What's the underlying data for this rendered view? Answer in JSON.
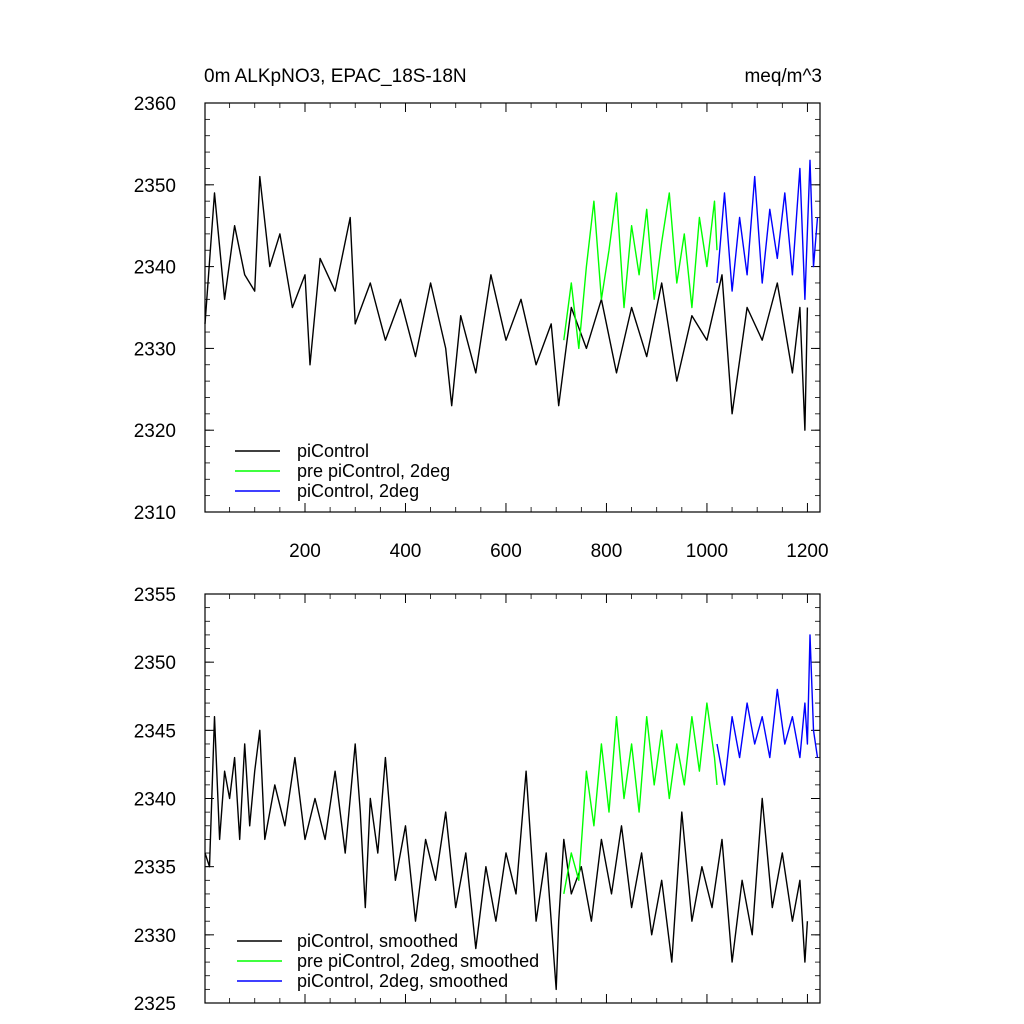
{
  "chart_data": [
    {
      "type": "line",
      "title": "0m ALKpNO3, EPAC_18S-18N",
      "units": "meq/m^3",
      "xlim": [
        1,
        1225
      ],
      "ylim": [
        2310,
        2360
      ],
      "x_ticks": [
        200,
        400,
        600,
        800,
        1000,
        1200
      ],
      "x_tick_labels": [
        "200",
        "400",
        "600",
        "800",
        "1000",
        "1200"
      ],
      "y_ticks": [
        2310,
        2320,
        2330,
        2340,
        2350,
        2360
      ],
      "y_tick_labels": [
        "2310",
        "2320",
        "2330",
        "2340",
        "2350",
        "2360"
      ],
      "legend_position": "bottom-left",
      "series": [
        {
          "name": "piControl",
          "color": "#000000",
          "x": [
            1,
            20,
            40,
            60,
            80,
            100,
            110,
            130,
            150,
            175,
            200,
            210,
            230,
            260,
            290,
            300,
            330,
            360,
            390,
            420,
            450,
            480,
            492,
            510,
            540,
            570,
            600,
            630,
            660,
            690,
            705,
            730,
            760,
            790,
            820,
            850,
            880,
            910,
            940,
            970,
            1000,
            1030,
            1050,
            1080,
            1110,
            1140,
            1170,
            1185,
            1195,
            1200
          ],
          "values": [
            2333,
            2349,
            2336,
            2345,
            2339,
            2337,
            2351,
            2340,
            2344,
            2335,
            2339,
            2328,
            2341,
            2337,
            2346,
            2333,
            2338,
            2331,
            2336,
            2329,
            2338,
            2330,
            2323,
            2334,
            2327,
            2339,
            2331,
            2336,
            2328,
            2333,
            2323,
            2335,
            2330,
            2336,
            2327,
            2335,
            2329,
            2338,
            2326,
            2334,
            2331,
            2339,
            2322,
            2335,
            2331,
            2338,
            2327,
            2335,
            2320,
            2335
          ]
        },
        {
          "name": "pre piControl, 2deg",
          "color": "#00ff00",
          "x": [
            715,
            730,
            745,
            760,
            775,
            790,
            805,
            820,
            835,
            850,
            865,
            880,
            895,
            910,
            925,
            940,
            955,
            970,
            985,
            1000,
            1015,
            1020
          ],
          "values": [
            2331,
            2338,
            2330,
            2340,
            2348,
            2336,
            2342,
            2349,
            2335,
            2345,
            2339,
            2347,
            2336,
            2343,
            2349,
            2338,
            2344,
            2335,
            2346,
            2340,
            2348,
            2342
          ]
        },
        {
          "name": "piControl, 2deg",
          "color": "#0000ff",
          "x": [
            1020,
            1035,
            1050,
            1065,
            1080,
            1095,
            1110,
            1125,
            1140,
            1155,
            1170,
            1185,
            1195,
            1205,
            1212,
            1220
          ],
          "values": [
            2338,
            2349,
            2337,
            2346,
            2339,
            2351,
            2338,
            2347,
            2341,
            2349,
            2339,
            2352,
            2336,
            2353,
            2340,
            2346
          ]
        }
      ]
    },
    {
      "type": "line",
      "xlim": [
        1,
        1225
      ],
      "ylim": [
        2325,
        2355
      ],
      "x_ticks": [
        200,
        400,
        600,
        800,
        1000,
        1200
      ],
      "y_ticks": [
        2325,
        2330,
        2335,
        2340,
        2345,
        2350,
        2355
      ],
      "y_tick_labels": [
        "2325",
        "2330",
        "2335",
        "2340",
        "2345",
        "2350",
        "2355"
      ],
      "legend_position": "bottom-left",
      "series": [
        {
          "name": "piControl, smoothed",
          "color": "#000000",
          "x": [
            1,
            10,
            20,
            30,
            40,
            50,
            60,
            70,
            80,
            90,
            100,
            110,
            120,
            140,
            160,
            180,
            200,
            220,
            240,
            260,
            280,
            300,
            310,
            320,
            330,
            345,
            360,
            380,
            400,
            420,
            440,
            460,
            480,
            500,
            520,
            540,
            560,
            580,
            600,
            620,
            640,
            660,
            680,
            700,
            705,
            715,
            730,
            750,
            770,
            790,
            810,
            830,
            850,
            870,
            890,
            910,
            930,
            950,
            970,
            990,
            1010,
            1030,
            1050,
            1070,
            1090,
            1110,
            1130,
            1150,
            1170,
            1185,
            1195,
            1200
          ],
          "values": [
            2336,
            2335,
            2346,
            2337,
            2342,
            2340,
            2343,
            2337,
            2344,
            2338,
            2342,
            2345,
            2337,
            2341,
            2338,
            2343,
            2337,
            2340,
            2337,
            2342,
            2336,
            2344,
            2339,
            2332,
            2340,
            2336,
            2343,
            2334,
            2338,
            2331,
            2337,
            2334,
            2339,
            2332,
            2336,
            2329,
            2335,
            2331,
            2336,
            2333,
            2342,
            2331,
            2336,
            2326,
            2331,
            2337,
            2333,
            2335,
            2331,
            2337,
            2333,
            2338,
            2332,
            2336,
            2330,
            2334,
            2328,
            2339,
            2331,
            2335,
            2332,
            2337,
            2328,
            2334,
            2330,
            2340,
            2332,
            2336,
            2331,
            2334,
            2328,
            2331
          ]
        },
        {
          "name": "pre piControl, 2deg, smoothed",
          "color": "#00ff00",
          "x": [
            715,
            730,
            745,
            760,
            775,
            790,
            805,
            820,
            835,
            850,
            865,
            880,
            895,
            910,
            925,
            940,
            955,
            970,
            985,
            1000,
            1015,
            1020
          ],
          "values": [
            2333,
            2336,
            2334,
            2342,
            2338,
            2344,
            2339,
            2346,
            2340,
            2344,
            2339,
            2346,
            2341,
            2345,
            2340,
            2344,
            2341,
            2346,
            2342,
            2347,
            2343,
            2341
          ]
        },
        {
          "name": "piControl, 2deg, smoothed",
          "color": "#0000ff",
          "x": [
            1020,
            1035,
            1050,
            1065,
            1080,
            1095,
            1110,
            1125,
            1140,
            1155,
            1170,
            1185,
            1195,
            1200,
            1205,
            1212,
            1220
          ],
          "values": [
            2344,
            2341,
            2346,
            2343,
            2347,
            2344,
            2346,
            2343,
            2348,
            2344,
            2346,
            2343,
            2347,
            2344,
            2352,
            2345,
            2343
          ]
        }
      ]
    }
  ]
}
